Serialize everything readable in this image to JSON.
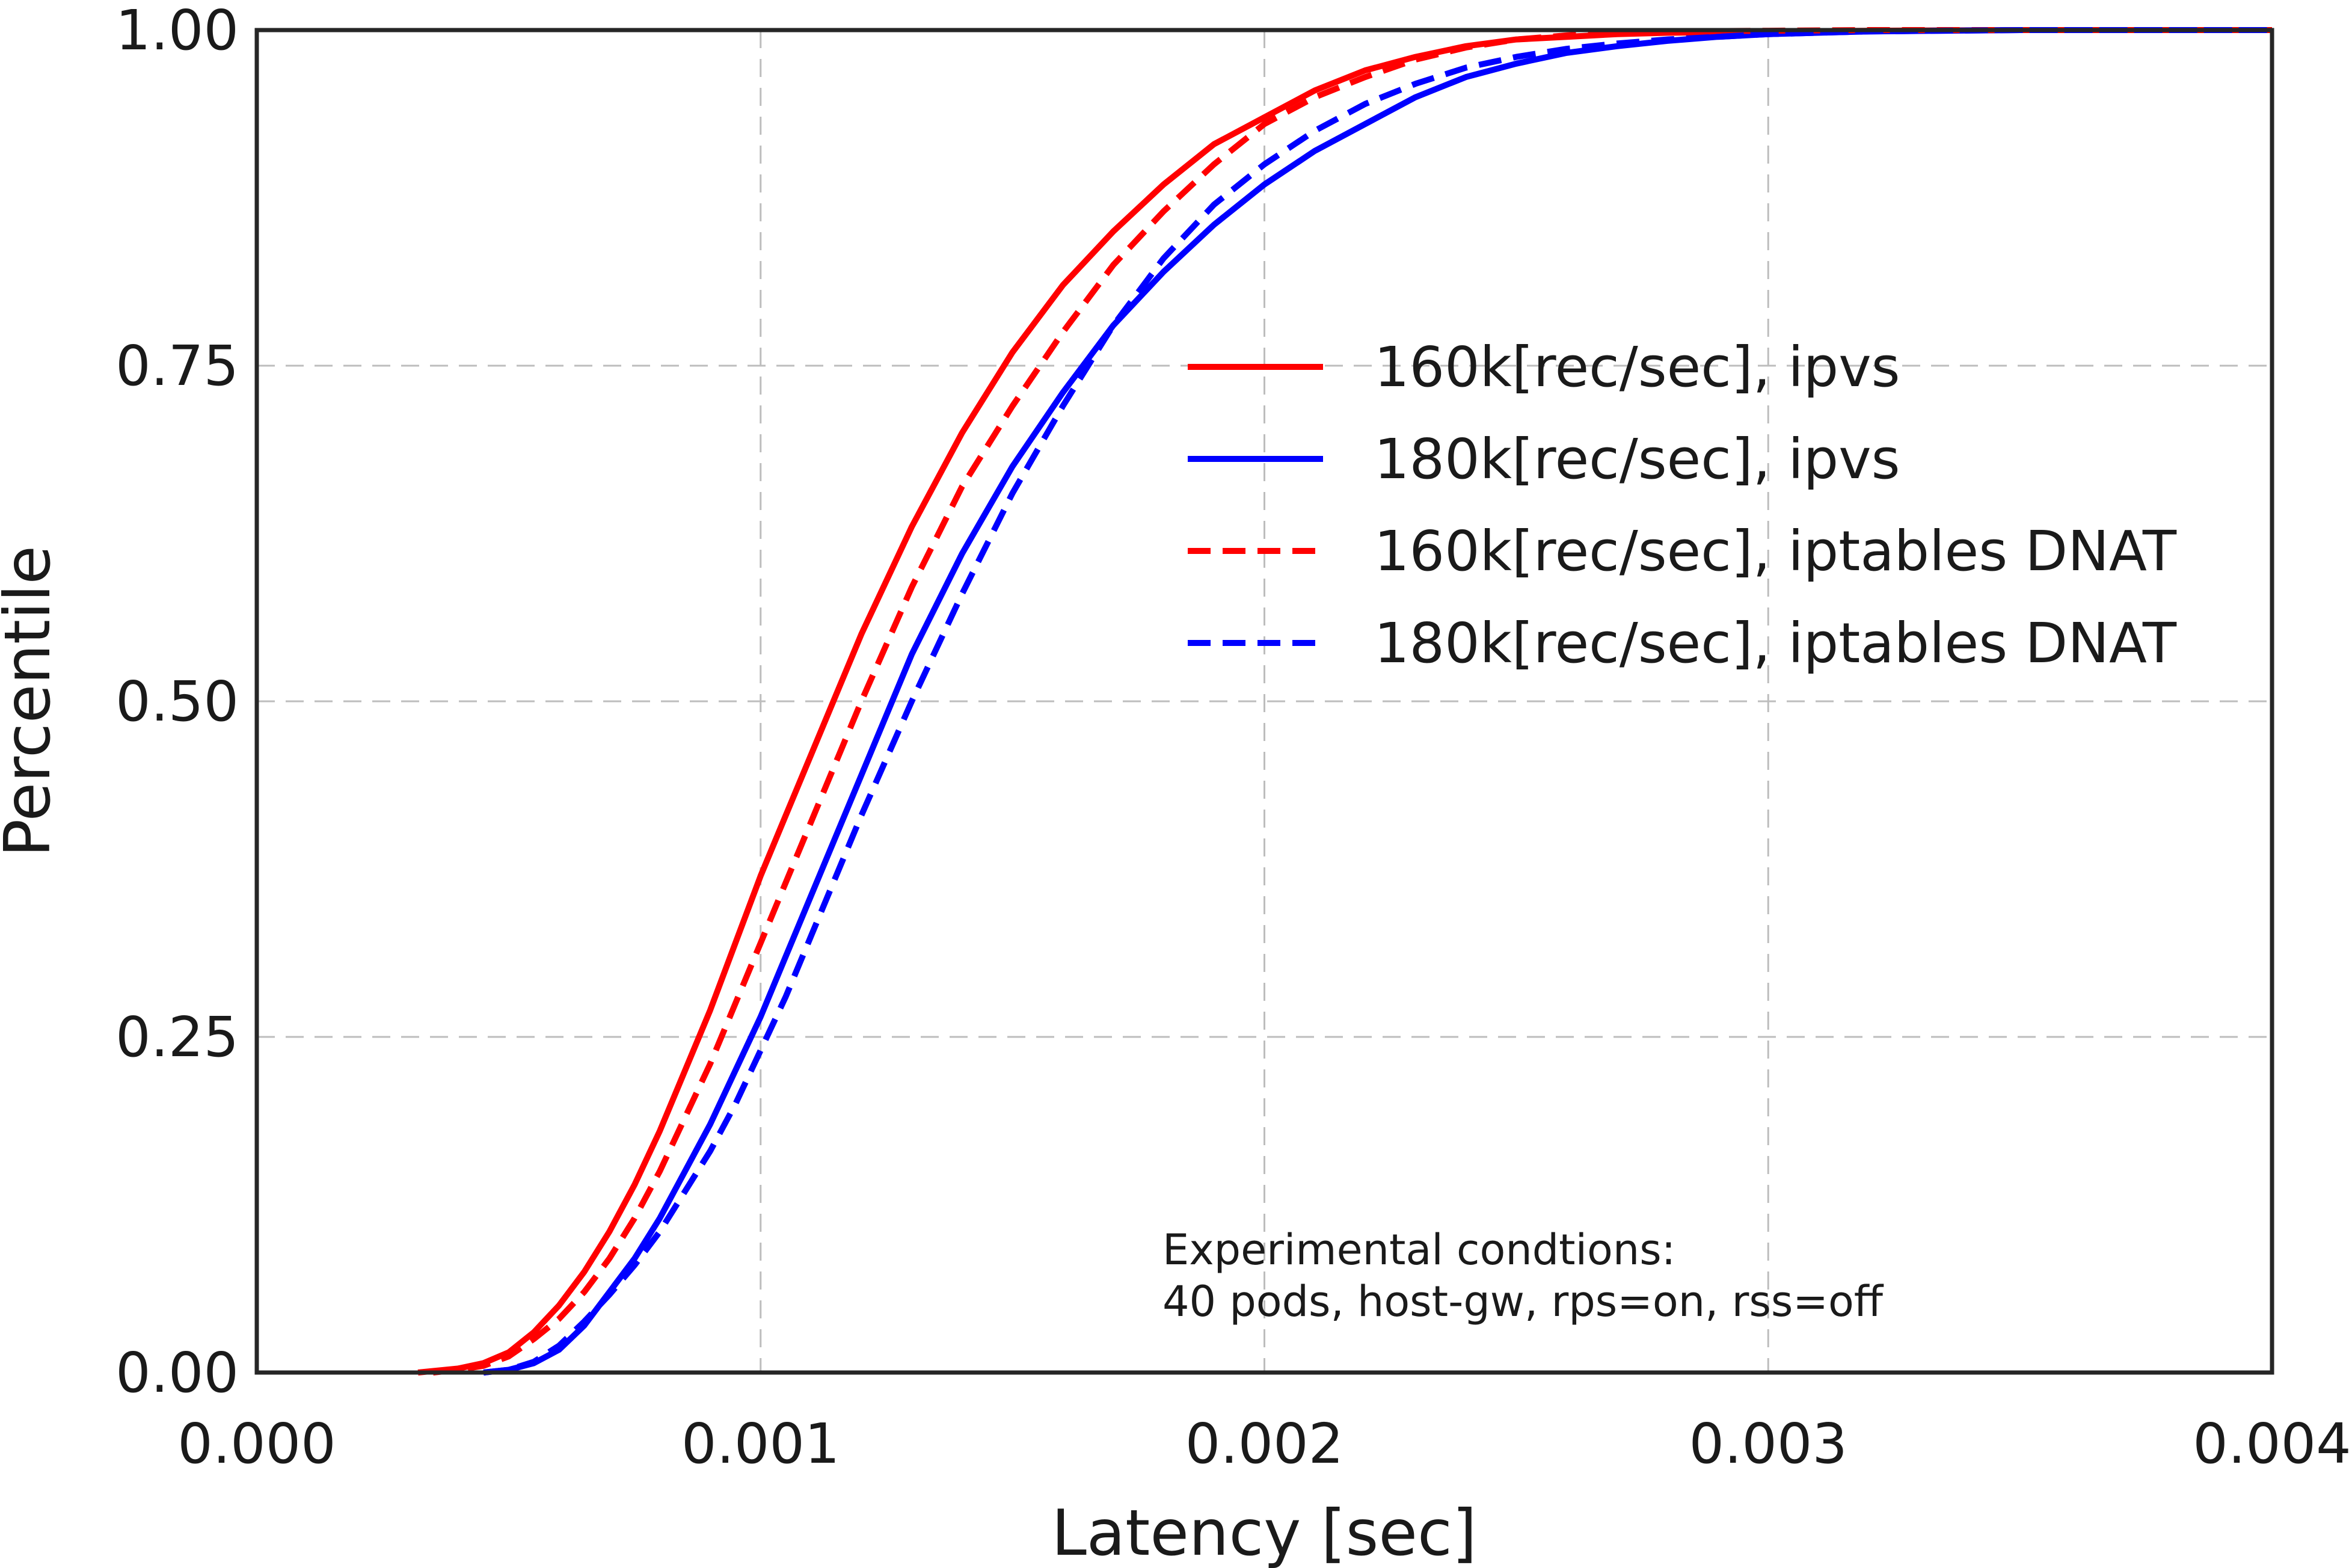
{
  "chart_data": {
    "type": "line",
    "title": "",
    "xlabel": "Latency [sec]",
    "ylabel": "Percentile",
    "xlim": [
      0.0,
      0.004
    ],
    "ylim": [
      0.0,
      1.0
    ],
    "x_ticks": [
      0.0,
      0.001,
      0.002,
      0.003,
      0.004
    ],
    "x_tick_labels": [
      "0.000",
      "0.001",
      "0.002",
      "0.003",
      "0.004"
    ],
    "y_ticks": [
      0.0,
      0.25,
      0.5,
      0.75,
      1.0
    ],
    "y_tick_labels": [
      "0.00",
      "0.25",
      "0.50",
      "0.75",
      "1.00"
    ],
    "grid": true,
    "legend_position": "center-right",
    "annotation": {
      "line1": "Experimental condtions:",
      "line2": "40 pods, host-gw, rps=on, rss=off"
    },
    "series": [
      {
        "name": "160k[rec/sec], ipvs",
        "color": "#ff0000",
        "dash": "solid",
        "x": [
          0.00032,
          0.0004,
          0.00045,
          0.0005,
          0.00055,
          0.0006,
          0.00065,
          0.0007,
          0.00075,
          0.0008,
          0.00085,
          0.0009,
          0.00095,
          0.001,
          0.00105,
          0.0011,
          0.00115,
          0.0012,
          0.0013,
          0.0014,
          0.0015,
          0.0016,
          0.0017,
          0.0018,
          0.0019,
          0.002,
          0.0021,
          0.0022,
          0.0023,
          0.0024,
          0.0025,
          0.0026,
          0.0027,
          0.0028,
          0.003,
          0.0032,
          0.0035,
          0.004
        ],
        "y": [
          0.0,
          0.003,
          0.007,
          0.015,
          0.03,
          0.05,
          0.075,
          0.105,
          0.14,
          0.18,
          0.225,
          0.27,
          0.32,
          0.37,
          0.415,
          0.46,
          0.505,
          0.55,
          0.63,
          0.7,
          0.76,
          0.81,
          0.85,
          0.885,
          0.915,
          0.935,
          0.955,
          0.97,
          0.98,
          0.988,
          0.993,
          0.995,
          0.997,
          0.998,
          0.999,
          0.9995,
          1.0,
          1.0
        ]
      },
      {
        "name": "180k[rec/sec], ipvs",
        "color": "#0000ff",
        "dash": "solid",
        "x": [
          0.00045,
          0.0005,
          0.00055,
          0.0006,
          0.00065,
          0.0007,
          0.00075,
          0.0008,
          0.00085,
          0.0009,
          0.00095,
          0.001,
          0.00105,
          0.0011,
          0.00115,
          0.0012,
          0.0013,
          0.0014,
          0.0015,
          0.0016,
          0.0017,
          0.0018,
          0.0019,
          0.002,
          0.0021,
          0.0022,
          0.0023,
          0.0024,
          0.0025,
          0.0026,
          0.0027,
          0.0028,
          0.0029,
          0.003,
          0.0032,
          0.0035,
          0.004
        ],
        "y": [
          0.0,
          0.002,
          0.007,
          0.017,
          0.035,
          0.06,
          0.085,
          0.115,
          0.15,
          0.185,
          0.225,
          0.265,
          0.31,
          0.355,
          0.4,
          0.445,
          0.535,
          0.61,
          0.675,
          0.73,
          0.78,
          0.82,
          0.855,
          0.885,
          0.91,
          0.93,
          0.95,
          0.965,
          0.975,
          0.983,
          0.988,
          0.992,
          0.995,
          0.997,
          0.999,
          1.0,
          1.0
        ]
      },
      {
        "name": "160k[rec/sec], iptables DNAT",
        "color": "#ff0000",
        "dash": "dashed",
        "x": [
          0.00035,
          0.0004,
          0.00045,
          0.0005,
          0.00055,
          0.0006,
          0.00065,
          0.0007,
          0.00075,
          0.0008,
          0.00085,
          0.0009,
          0.00095,
          0.001,
          0.00105,
          0.0011,
          0.00115,
          0.0012,
          0.0013,
          0.0014,
          0.0015,
          0.0016,
          0.0017,
          0.0018,
          0.0019,
          0.002,
          0.0021,
          0.0022,
          0.0023,
          0.0024,
          0.0025,
          0.0026,
          0.0027,
          0.0028,
          0.003,
          0.0032,
          0.0035,
          0.004
        ],
        "y": [
          0.0,
          0.002,
          0.005,
          0.012,
          0.025,
          0.04,
          0.06,
          0.085,
          0.115,
          0.15,
          0.19,
          0.23,
          0.275,
          0.32,
          0.365,
          0.41,
          0.455,
          0.5,
          0.585,
          0.66,
          0.72,
          0.775,
          0.825,
          0.865,
          0.9,
          0.93,
          0.95,
          0.965,
          0.978,
          0.987,
          0.993,
          0.996,
          0.998,
          0.999,
          0.9995,
          1.0,
          1.0,
          1.0
        ]
      },
      {
        "name": "180k[rec/sec], iptables DNAT",
        "color": "#0000ff",
        "dash": "dashed",
        "x": [
          0.00045,
          0.0005,
          0.00055,
          0.0006,
          0.00065,
          0.0007,
          0.00075,
          0.0008,
          0.00085,
          0.0009,
          0.00095,
          0.001,
          0.00105,
          0.0011,
          0.00115,
          0.0012,
          0.0013,
          0.0014,
          0.0015,
          0.0016,
          0.0017,
          0.0018,
          0.0019,
          0.002,
          0.0021,
          0.0022,
          0.0023,
          0.0024,
          0.0025,
          0.0026,
          0.0027,
          0.0028,
          0.0029,
          0.003,
          0.0032,
          0.0035,
          0.004
        ],
        "y": [
          0.0,
          0.002,
          0.008,
          0.02,
          0.038,
          0.058,
          0.08,
          0.105,
          0.135,
          0.165,
          0.2,
          0.24,
          0.28,
          0.325,
          0.37,
          0.415,
          0.5,
          0.58,
          0.655,
          0.72,
          0.78,
          0.83,
          0.87,
          0.9,
          0.925,
          0.945,
          0.96,
          0.972,
          0.98,
          0.986,
          0.99,
          0.993,
          0.995,
          0.997,
          0.999,
          1.0,
          1.0
        ]
      }
    ]
  }
}
